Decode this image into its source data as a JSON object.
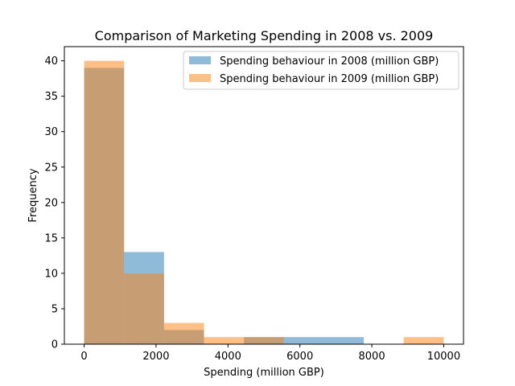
{
  "chart_data": {
    "type": "bar",
    "subtype": "overlapping-histogram",
    "title": "Comparison of Marketing Spending in 2008 vs. 2009",
    "xlabel": "Spending (million GBP)",
    "ylabel": "Frequency",
    "xlim": [
      -550,
      10550
    ],
    "ylim": [
      0,
      42
    ],
    "xticks": [
      0,
      2000,
      4000,
      6000,
      8000,
      10000
    ],
    "yticks": [
      0,
      5,
      10,
      15,
      20,
      25,
      30,
      35,
      40
    ],
    "grid": false,
    "legend_position": "top-right",
    "series": [
      {
        "name": "Spending behaviour in 2008 (million GBP)",
        "color": "#1f77b4",
        "alpha": 0.5,
        "bins": [
          {
            "x0": 0,
            "x1": 1111,
            "count": 39
          },
          {
            "x0": 1111,
            "x1": 2222,
            "count": 13
          },
          {
            "x0": 2222,
            "x1": 3333,
            "count": 2
          },
          {
            "x0": 3333,
            "x1": 4444,
            "count": 0
          },
          {
            "x0": 4444,
            "x1": 5555,
            "count": 1
          },
          {
            "x0": 5555,
            "x1": 6666,
            "count": 1
          },
          {
            "x0": 6666,
            "x1": 7777,
            "count": 1
          }
        ]
      },
      {
        "name": "Spending behaviour in 2009 (million GBP)",
        "color": "#ff7f0e",
        "alpha": 0.5,
        "bins": [
          {
            "x0": 0,
            "x1": 1111,
            "count": 40
          },
          {
            "x0": 1111,
            "x1": 2222,
            "count": 10
          },
          {
            "x0": 2222,
            "x1": 3333,
            "count": 3
          },
          {
            "x0": 3333,
            "x1": 4444,
            "count": 1
          },
          {
            "x0": 4444,
            "x1": 5555,
            "count": 1
          },
          {
            "x0": 5555,
            "x1": 6666,
            "count": 0
          },
          {
            "x0": 6666,
            "x1": 7777,
            "count": 0
          },
          {
            "x0": 7777,
            "x1": 8888,
            "count": 0
          },
          {
            "x0": 8888,
            "x1": 10000,
            "count": 1
          }
        ]
      }
    ]
  }
}
